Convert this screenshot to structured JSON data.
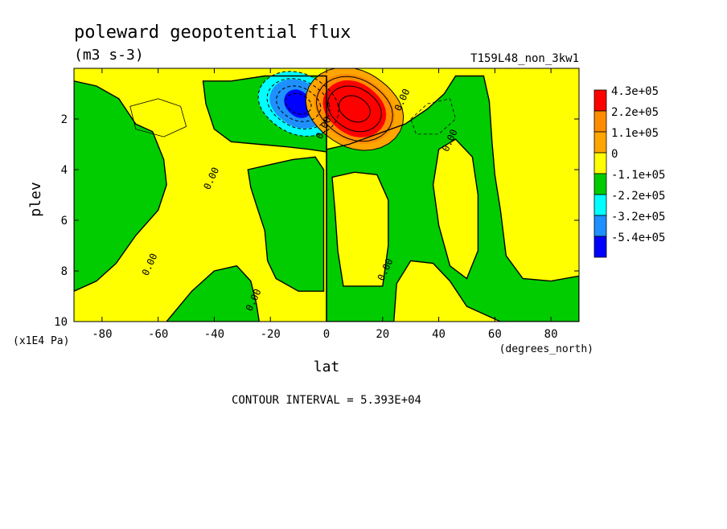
{
  "chart_data": {
    "type": "heatmap",
    "title": "poleward geopotential flux",
    "subtitle": "(m3 s-3)",
    "run_label": "T159L48_non_3kw1",
    "xlabel": "lat",
    "x_units": "(degrees_north)",
    "ylabel": "plev",
    "y_units": "(x1E4 Pa)",
    "xlim": [
      -90,
      90
    ],
    "ylim": [
      10,
      0
    ],
    "x_ticks": [
      -80,
      -60,
      -40,
      -20,
      0,
      20,
      40,
      60,
      80
    ],
    "x_tick_labels": [
      "-80",
      "-60",
      "-40",
      "-20",
      "0",
      "20",
      "40",
      "60",
      "80"
    ],
    "y_ticks": [
      2,
      4,
      6,
      8,
      10
    ],
    "y_tick_labels": [
      "2",
      "4",
      "6",
      "8",
      "10"
    ],
    "footer": "CONTOUR INTERVAL = 5.393E+04",
    "contour_interval": 53930,
    "zero_contour_label": "0.00",
    "zero_contour_label_positions": [
      [
        -62,
        7.8
      ],
      [
        -40,
        4.4
      ],
      [
        -25,
        9.2
      ],
      [
        0,
        2.4
      ],
      [
        22,
        8.0
      ],
      [
        28,
        1.3
      ],
      [
        45,
        2.9
      ]
    ],
    "colorbar": {
      "levels": [
        {
          "label": "4.3e+05",
          "color": "#ff0000"
        },
        {
          "label": "2.2e+05",
          "color": "#ff8c00"
        },
        {
          "label": "1.1e+05",
          "color": "#ffa500"
        },
        {
          "label": "0",
          "color": "#ffff00"
        },
        {
          "label": "-1.1e+05",
          "color": "#00cc00"
        },
        {
          "label": "-2.2e+05",
          "color": "#00ffff"
        },
        {
          "label": "-3.2e+05",
          "color": "#1e90ff"
        },
        {
          "label": "-5.4e+05",
          "color": "#0000ff"
        }
      ]
    },
    "features": [
      {
        "name": "negative-core",
        "lat": -10,
        "plev": 1.4,
        "min_value": -540000
      },
      {
        "name": "positive-core",
        "lat": 10,
        "plev": 1.6,
        "max_value": 430000
      }
    ]
  }
}
